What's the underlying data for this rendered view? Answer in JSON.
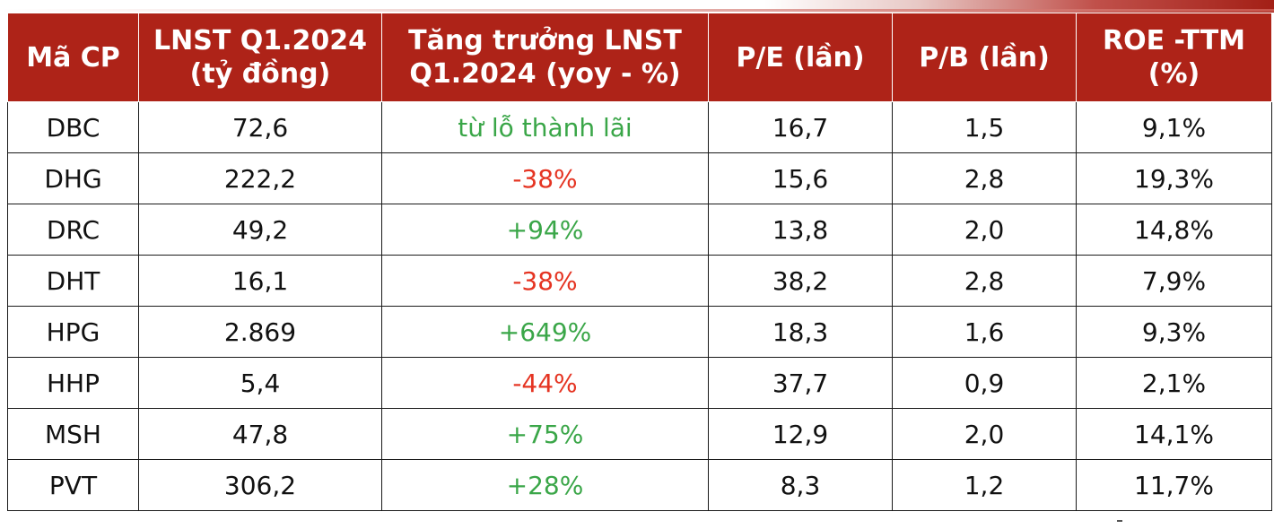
{
  "table": {
    "headers": [
      [
        "Mã CP"
      ],
      [
        "LNST Q1.2024",
        "(tỷ đồng)"
      ],
      [
        "Tăng trưởng LNST",
        "Q1.2024 (yoy - %)"
      ],
      [
        "P/E (lần)"
      ],
      [
        "P/B (lần)"
      ],
      [
        "ROE -TTM",
        "(%)"
      ]
    ],
    "rows": [
      {
        "ticker": "DBC",
        "profit": "72,6",
        "growth": "từ lỗ thành lãi",
        "growth_trend": "pos",
        "pe": "16,7",
        "pb": "1,5",
        "roe": "9,1%"
      },
      {
        "ticker": "DHG",
        "profit": "222,2",
        "growth": "-38%",
        "growth_trend": "neg",
        "pe": "15,6",
        "pb": "2,8",
        "roe": "19,3%"
      },
      {
        "ticker": "DRC",
        "profit": "49,2",
        "growth": "+94%",
        "growth_trend": "pos",
        "pe": "13,8",
        "pb": "2,0",
        "roe": "14,8%"
      },
      {
        "ticker": "DHT",
        "profit": "16,1",
        "growth": "-38%",
        "growth_trend": "neg",
        "pe": "38,2",
        "pb": "2,8",
        "roe": "7,9%"
      },
      {
        "ticker": "HPG",
        "profit": "2.869",
        "growth": "+649%",
        "growth_trend": "pos",
        "pe": "18,3",
        "pb": "1,6",
        "roe": "9,3%"
      },
      {
        "ticker": "HHP",
        "profit": "5,4",
        "growth": "-44%",
        "growth_trend": "neg",
        "pe": "37,7",
        "pb": "0,9",
        "roe": "2,1%"
      },
      {
        "ticker": "MSH",
        "profit": "47,8",
        "growth": "+75%",
        "growth_trend": "pos",
        "pe": "12,9",
        "pb": "2,0",
        "roe": "14,1%"
      },
      {
        "ticker": "PVT",
        "profit": "306,2",
        "growth": "+28%",
        "growth_trend": "pos",
        "pe": "8,3",
        "pb": "1,2",
        "roe": "11,7%"
      }
    ]
  },
  "colors": {
    "header_bg": "#ae2318",
    "positive": "#3aa648",
    "negative": "#e53422"
  }
}
